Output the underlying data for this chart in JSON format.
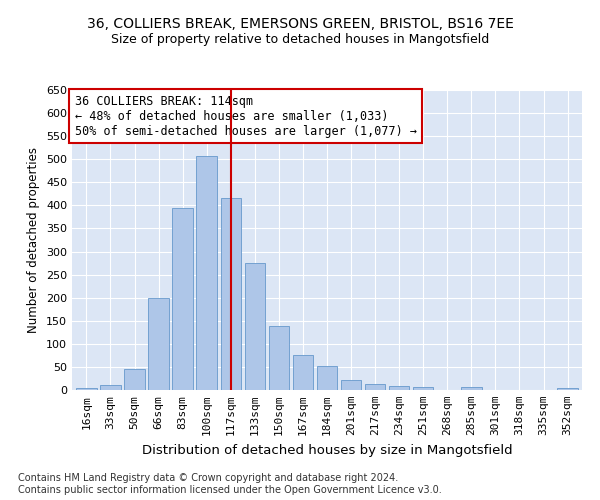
{
  "title_line1": "36, COLLIERS BREAK, EMERSONS GREEN, BRISTOL, BS16 7EE",
  "title_line2": "Size of property relative to detached houses in Mangotsfield",
  "xlabel": "Distribution of detached houses by size in Mangotsfield",
  "ylabel": "Number of detached properties",
  "categories": [
    "16sqm",
    "33sqm",
    "50sqm",
    "66sqm",
    "83sqm",
    "100sqm",
    "117sqm",
    "133sqm",
    "150sqm",
    "167sqm",
    "184sqm",
    "201sqm",
    "217sqm",
    "234sqm",
    "251sqm",
    "268sqm",
    "285sqm",
    "301sqm",
    "318sqm",
    "335sqm",
    "352sqm"
  ],
  "values": [
    5,
    10,
    45,
    200,
    395,
    507,
    415,
    275,
    138,
    75,
    52,
    22,
    13,
    8,
    7,
    0,
    6,
    0,
    0,
    0,
    4
  ],
  "bar_color": "#aec6e8",
  "bar_edge_color": "#6699cc",
  "vline_x": 6,
  "vline_color": "#cc0000",
  "annotation_text": "36 COLLIERS BREAK: 114sqm\n← 48% of detached houses are smaller (1,033)\n50% of semi-detached houses are larger (1,077) →",
  "annotation_box_color": "#cc0000",
  "ylim": [
    0,
    650
  ],
  "yticks": [
    0,
    50,
    100,
    150,
    200,
    250,
    300,
    350,
    400,
    450,
    500,
    550,
    600,
    650
  ],
  "bg_color": "#dce6f5",
  "footnote": "Contains HM Land Registry data © Crown copyright and database right 2024.\nContains public sector information licensed under the Open Government Licence v3.0.",
  "title_fontsize": 10,
  "subtitle_fontsize": 9,
  "annotation_fontsize": 8.5,
  "ylabel_fontsize": 8.5,
  "xlabel_fontsize": 9.5,
  "footnote_fontsize": 7,
  "tick_fontsize": 8
}
